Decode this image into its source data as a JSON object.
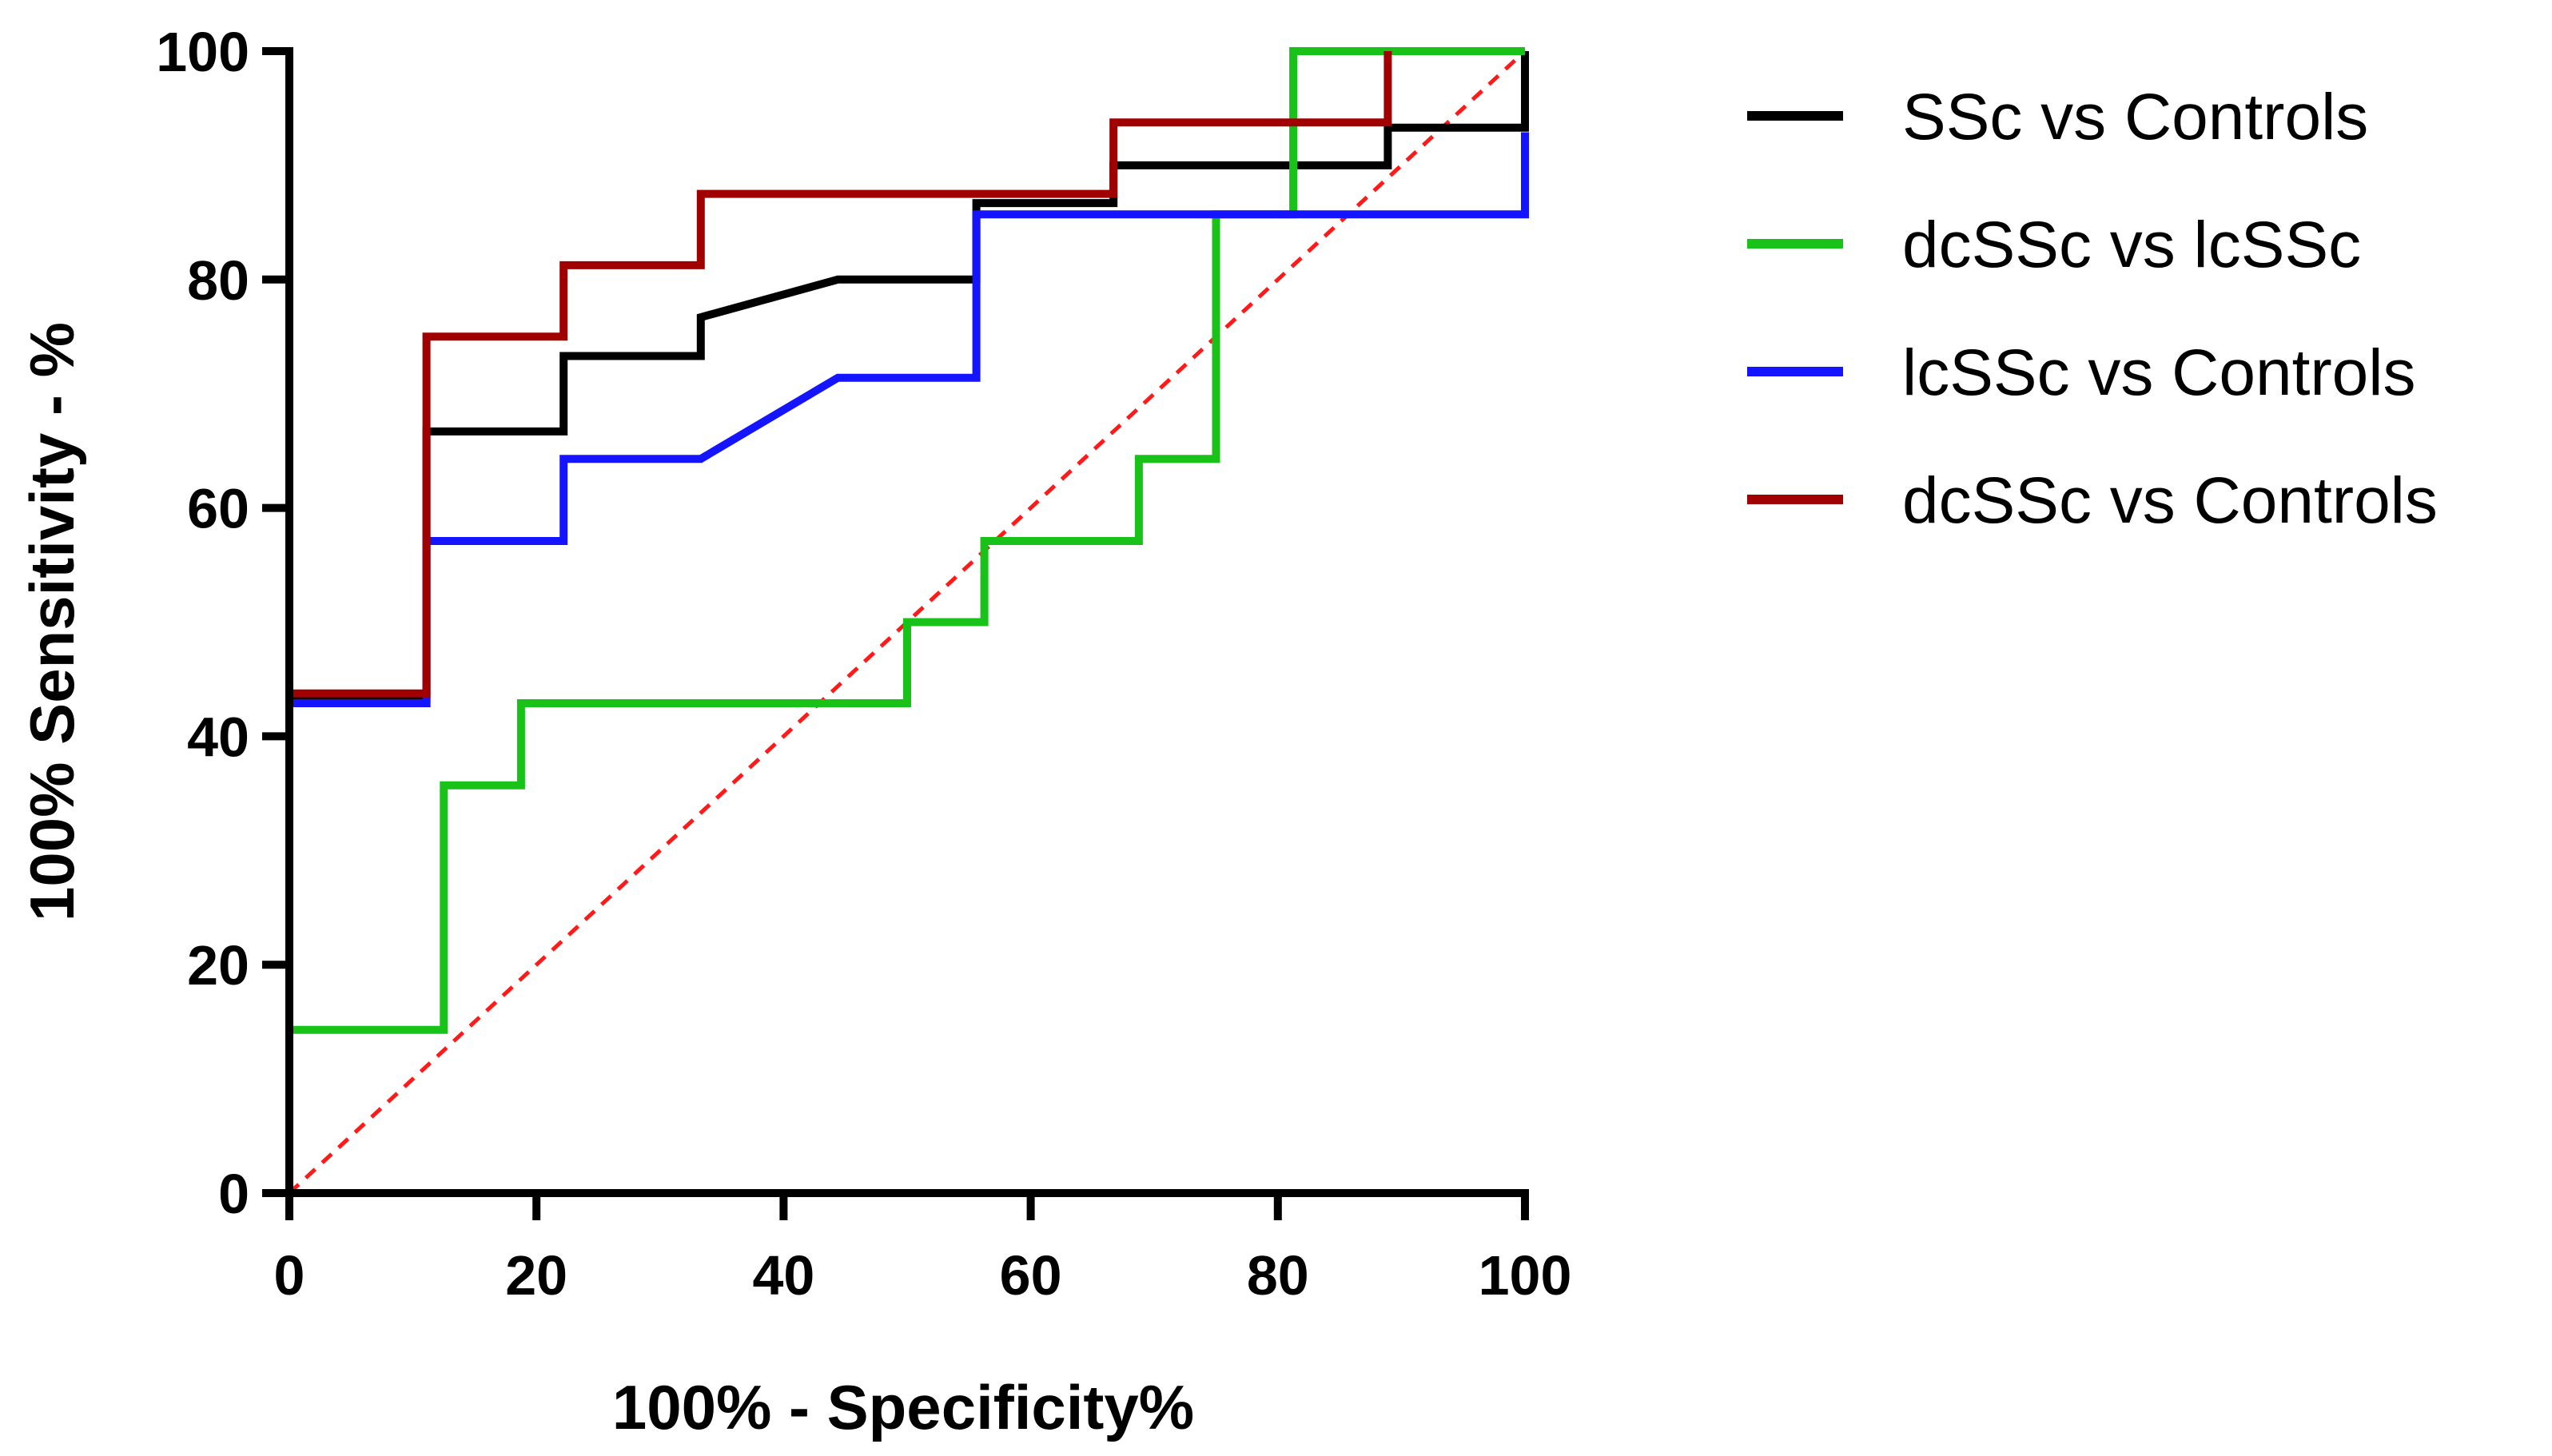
{
  "chart_data": {
    "type": "line",
    "title": "",
    "xlabel": "100% - Specificity%",
    "ylabel": "100% Sensitivity -  %",
    "xlim": [
      0,
      100
    ],
    "ylim": [
      0,
      100
    ],
    "x_ticks": [
      0,
      20,
      40,
      60,
      80,
      100
    ],
    "y_ticks": [
      0,
      20,
      40,
      60,
      80,
      100
    ],
    "x_tick_labels": [
      "0",
      "20",
      "40",
      "60",
      "80",
      "100"
    ],
    "y_tick_labels": [
      "0",
      "20",
      "40",
      "60",
      "80",
      "100"
    ],
    "grid": false,
    "legend_position": "right",
    "reference_line": {
      "name": "chance-diagonal",
      "style": "dashed",
      "color": "#ff1a1a",
      "x": [
        0,
        100
      ],
      "y": [
        0,
        100
      ]
    },
    "series": [
      {
        "name": "SSc vs Controls",
        "color": "#000000",
        "x": [
          0,
          11.1,
          11.1,
          22.2,
          22.2,
          33.3,
          33.3,
          44.4,
          55.6,
          55.6,
          66.7,
          66.7,
          88.9,
          88.9,
          100,
          100
        ],
        "y": [
          43.3,
          43.3,
          66.7,
          66.7,
          73.3,
          73.3,
          76.7,
          80,
          80,
          86.7,
          86.7,
          90,
          90,
          93.3,
          93.3,
          100
        ]
      },
      {
        "name": "dcSSc vs lcSSc",
        "color": "#19c219",
        "x": [
          0,
          12.5,
          12.5,
          18.75,
          18.75,
          50,
          50,
          56.25,
          56.25,
          68.75,
          68.75,
          75,
          75,
          81.25,
          81.25,
          100
        ],
        "y": [
          14.3,
          14.3,
          35.7,
          35.7,
          42.9,
          42.9,
          50,
          50,
          57.1,
          57.1,
          64.3,
          64.3,
          85.7,
          85.7,
          100,
          100
        ]
      },
      {
        "name": "lcSSc vs Controls",
        "color": "#1414ff",
        "x": [
          0,
          11.1,
          11.1,
          22.2,
          22.2,
          33.3,
          44.4,
          55.6,
          55.6,
          100,
          100
        ],
        "y": [
          42.9,
          42.9,
          57.1,
          57.1,
          64.3,
          64.3,
          71.4,
          71.4,
          85.7,
          85.7,
          92.9
        ]
      },
      {
        "name": "dcSSc vs Controls",
        "color": "#a00000",
        "x": [
          0,
          11.1,
          11.1,
          22.2,
          22.2,
          33.3,
          33.3,
          66.7,
          66.7,
          88.9,
          88.9
        ],
        "y": [
          43.75,
          43.75,
          75,
          75,
          81.25,
          81.25,
          87.5,
          87.5,
          93.75,
          93.75,
          100
        ]
      }
    ]
  }
}
